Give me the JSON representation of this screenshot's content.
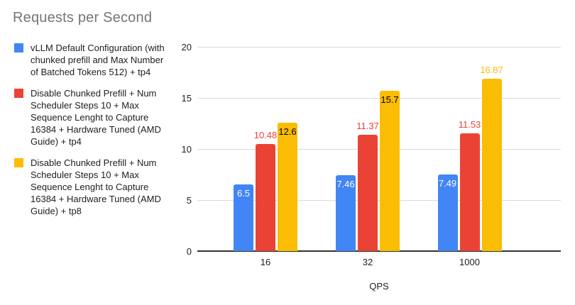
{
  "chart_data": {
    "type": "bar",
    "title": "Requests per Second",
    "xlabel": "QPS",
    "ylabel": "",
    "ylim": [
      0,
      20
    ],
    "yticks": [
      0,
      5,
      10,
      15,
      20
    ],
    "grid": true,
    "legend_position": "left",
    "categories": [
      "16",
      "32",
      "1000"
    ],
    "series": [
      {
        "name": "vLLM Default Configuration (with chunked prefill and Max Number of Batched Tokens 512) + tp4",
        "color": "#4285F4",
        "values": [
          6.5,
          7.46,
          7.49
        ],
        "labels": [
          "6.5",
          "7.46",
          "7.49"
        ],
        "label_placement": [
          "inside",
          "inside",
          "inside"
        ],
        "label_color_inside": "#ffffff"
      },
      {
        "name": "Disable Chunked Prefill + Num Scheduler Steps 10 + Max Sequence Lenght to Capture 16384 + Hardware Tuned (AMD Guide) + tp4",
        "color": "#EA4335",
        "values": [
          10.48,
          11.37,
          11.53
        ],
        "labels": [
          "10.48",
          "11.37",
          "11.53"
        ],
        "label_placement": [
          "above",
          "above",
          "above"
        ],
        "label_color_inside": "#000000"
      },
      {
        "name": "Disable Chunked Prefill + Num Scheduler Steps 10 + Max Sequence Lenght to Capture 16384 + Hardware Tuned (AMD Guide) + tp8",
        "color": "#FBBC04",
        "values": [
          12.6,
          15.7,
          16.87
        ],
        "labels": [
          "12.6",
          "15.7",
          "16.87"
        ],
        "label_placement": [
          "inside",
          "inside",
          "above"
        ],
        "label_color_inside": "#000000"
      }
    ],
    "colors": {
      "title_text": "#757575",
      "axis_text": "#202124",
      "gridline": "#d9d9d9",
      "baseline": "#333333",
      "background": "#ffffff"
    }
  }
}
